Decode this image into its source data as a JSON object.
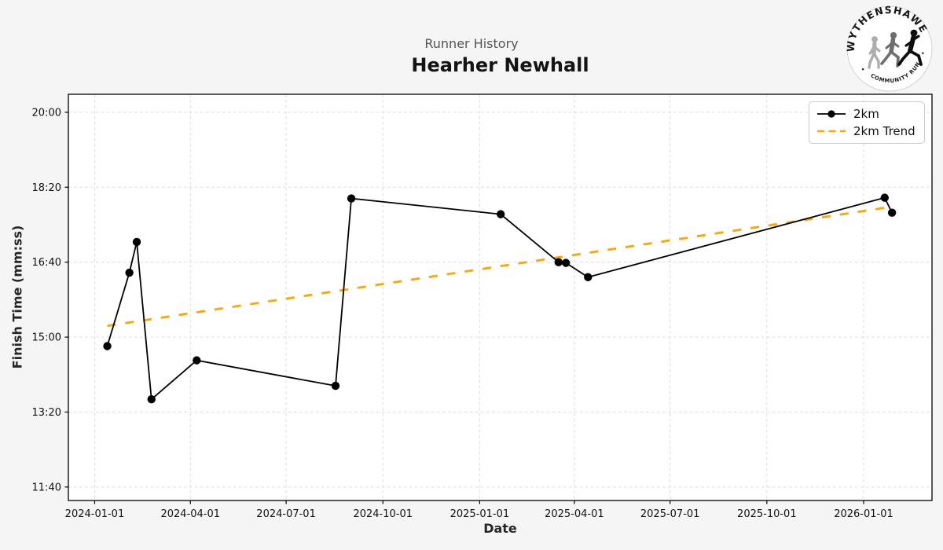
{
  "figure": {
    "background_color": "#f5f5f5",
    "suptitle": "Runner History",
    "title": "Hearher Newhall"
  },
  "legend": {
    "items": [
      {
        "label": "2km",
        "color": "#000000",
        "style": "solid-with-marker"
      },
      {
        "label": "2km Trend",
        "color": "#FFA500",
        "style": "dashed"
      }
    ]
  },
  "logo": {
    "top_text": "WYTHENSHAWE",
    "bottom_text": "COMMUNITY RUN"
  },
  "chart_data": {
    "type": "line",
    "suptitle": "Runner History",
    "title": "Hearher Newhall",
    "xlabel": "Date",
    "ylabel": "Finish Time (mm:ss)",
    "x_ticks": [
      "2024-01-01",
      "2024-04-01",
      "2024-07-01",
      "2024-10-01",
      "2025-01-01",
      "2025-04-01",
      "2025-07-01",
      "2025-10-01",
      "2026-01-01"
    ],
    "y_ticks": [
      "11:40",
      "13:20",
      "15:00",
      "16:40",
      "18:20",
      "20:00"
    ],
    "xlim": [
      "2023-12-07",
      "2026-03-07"
    ],
    "ylim_mmss": [
      "11:22",
      "20:24"
    ],
    "grid": true,
    "legend_position": "upper right",
    "series": [
      {
        "name": "2km",
        "color": "#000000",
        "marker": "circle",
        "points": [
          {
            "date": "2024-01-13",
            "time": "14:48"
          },
          {
            "date": "2024-02-03",
            "time": "16:26"
          },
          {
            "date": "2024-02-10",
            "time": "17:07"
          },
          {
            "date": "2024-02-24",
            "time": "13:37"
          },
          {
            "date": "2024-04-07",
            "time": "14:29"
          },
          {
            "date": "2024-08-17",
            "time": "13:55"
          },
          {
            "date": "2024-09-01",
            "time": "18:05"
          },
          {
            "date": "2025-01-21",
            "time": "17:44"
          },
          {
            "date": "2025-03-17",
            "time": "16:40"
          },
          {
            "date": "2025-03-24",
            "time": "16:39"
          },
          {
            "date": "2025-04-14",
            "time": "16:20"
          },
          {
            "date": "2026-01-21",
            "time": "18:06"
          },
          {
            "date": "2026-01-28",
            "time": "17:46"
          }
        ]
      },
      {
        "name": "2km Trend",
        "color": "#FFA500",
        "style": "dashed",
        "points": [
          {
            "date": "2024-01-13",
            "time": "15:15"
          },
          {
            "date": "2026-01-28",
            "time": "17:54"
          }
        ]
      }
    ]
  }
}
